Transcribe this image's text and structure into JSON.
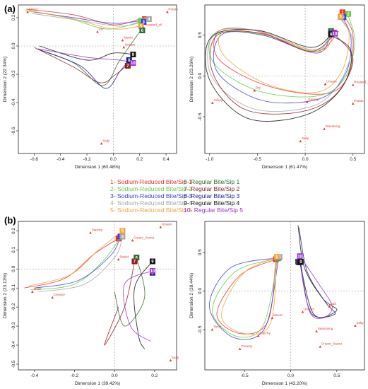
{
  "figure": {
    "colors": {
      "1": "#e8322c",
      "2": "#5fd146",
      "3": "#3b3fd0",
      "4": "#a7a7a7",
      "5": "#f4a23a",
      "6": "#2c6a2e",
      "7": "#8e1e22",
      "8": "#1c1c8a",
      "9": "#151515",
      "10": "#9a34d6",
      "point": "#e23b2e"
    },
    "legend": {
      "items": [
        {
          "key": "1",
          "label": "1- Sodium-Reduced Bite/Sip 1"
        },
        {
          "key": "2",
          "label": "2- Sodium-Reduced Bite/Sip 2"
        },
        {
          "key": "3",
          "label": "3- Sodium-Reduced Bite/Sip 3"
        },
        {
          "key": "4",
          "label": "4- Sodium-Reduced Bite/Sip 4"
        },
        {
          "key": "5",
          "label": "5- Sodium-Reduced Bite/Sip 5"
        },
        {
          "key": "6",
          "label": "6- Regular Bite/Sip 1"
        },
        {
          "key": "7",
          "label": "7- Regular Bite/Sip 2"
        },
        {
          "key": "8",
          "label": "8- Regular Bite/Sip 3"
        },
        {
          "key": "9",
          "label": "9- Regular Bite/Sip 4"
        },
        {
          "key": "10",
          "label": "10- Regular Bite/Sip 5"
        }
      ]
    },
    "panel_labels": [
      "(a)",
      "(b)"
    ]
  },
  "chart_data": [
    {
      "type": "scatter",
      "title": "",
      "panel": "(a)",
      "xlabel": "Dimension 1 (60.48%)",
      "ylabel": "Dimension 2 (22.34%)",
      "xlim": [
        -0.72,
        0.48
      ],
      "ylim": [
        -0.76,
        0.29
      ],
      "xticks": [
        -0.6,
        -0.4,
        -0.2,
        0.0,
        0.2,
        0.4
      ],
      "xtick_labels": [
        "-0.6",
        "-0.4",
        "-0.2",
        "0.0",
        "0.2",
        "0.4"
      ],
      "yticks": [
        -0.6,
        -0.4,
        -0.2,
        0.0,
        0.2
      ],
      "ytick_labels": [
        "-0.6",
        "-0.4",
        "-0.2",
        "0.0",
        "0.2"
      ],
      "attributes": [
        {
          "name": "Crispy",
          "x": -0.65,
          "y": 0.24
        },
        {
          "name": "Potato",
          "x": 0.41,
          "y": 0.24
        },
        {
          "name": "Dry",
          "x": -0.12,
          "y": 0.1
        },
        {
          "name": "Roasted_oil",
          "x": 0.23,
          "y": 0.13
        },
        {
          "name": "Sweet",
          "x": 0.07,
          "y": 0.04
        },
        {
          "name": "Umami",
          "x": 0.08,
          "y": -0.01
        },
        {
          "name": "Salty",
          "x": -0.09,
          "y": -0.69
        }
      ],
      "samples": [
        {
          "id": "1",
          "x": 0.24,
          "y": 0.19
        },
        {
          "id": "2",
          "x": 0.21,
          "y": 0.18
        },
        {
          "id": "3",
          "x": 0.23,
          "y": 0.17
        },
        {
          "id": "4",
          "x": 0.27,
          "y": 0.19
        },
        {
          "id": "5",
          "x": 0.21,
          "y": 0.14
        },
        {
          "id": "6",
          "x": 0.22,
          "y": 0.11
        },
        {
          "id": "7",
          "x": 0.11,
          "y": -0.14
        },
        {
          "id": "8",
          "x": 0.12,
          "y": -0.1
        },
        {
          "id": "9",
          "x": 0.15,
          "y": -0.06
        },
        {
          "id": "10",
          "x": 0.15,
          "y": -0.12
        }
      ]
    },
    {
      "type": "scatter",
      "title": "",
      "panel": "(a)",
      "xlabel": "Dimension 1 (61.47%)",
      "ylabel": "Dimension 2 (23.26%)",
      "xlim": [
        -1.05,
        0.62
      ],
      "ylim": [
        -0.95,
        0.87
      ],
      "xticks": [
        -1.0,
        -0.5,
        0.0,
        0.5
      ],
      "xtick_labels": [
        "-1.0",
        "-0.5",
        "0.0",
        "0.5"
      ],
      "yticks": [
        -0.5,
        0.0,
        0.5
      ],
      "ytick_labels": [
        "-0.5",
        "0.0",
        "0.5"
      ],
      "attributes": [
        {
          "name": "Crispy",
          "x": -0.97,
          "y": -0.33
        },
        {
          "name": "Dry",
          "x": -0.53,
          "y": -0.18
        },
        {
          "name": "Umami",
          "x": 0.21,
          "y": -0.1
        },
        {
          "name": "Roasted_oil",
          "x": 0.5,
          "y": -0.11
        },
        {
          "name": "Greasy",
          "x": 0.02,
          "y": -0.32
        },
        {
          "name": "Potato",
          "x": 0.5,
          "y": -0.34
        },
        {
          "name": "Dissolving",
          "x": 0.2,
          "y": -0.65
        },
        {
          "name": "Salty",
          "x": -0.05,
          "y": -0.8
        }
      ],
      "samples": [
        {
          "id": "1",
          "x": 0.39,
          "y": 0.78
        },
        {
          "id": "2",
          "x": 0.45,
          "y": 0.76
        },
        {
          "id": "3",
          "x": 0.4,
          "y": 0.72
        },
        {
          "id": "4",
          "x": 0.37,
          "y": 0.72
        },
        {
          "id": "5",
          "x": 0.37,
          "y": 0.73
        },
        {
          "id": "6",
          "x": 0.27,
          "y": 0.55
        },
        {
          "id": "7",
          "x": 0.3,
          "y": 0.53
        },
        {
          "id": "8",
          "x": 0.27,
          "y": 0.52
        },
        {
          "id": "9",
          "x": 0.27,
          "y": 0.51
        },
        {
          "id": "10",
          "x": 0.31,
          "y": 0.52
        }
      ]
    },
    {
      "type": "scatter",
      "title": "",
      "panel": "(b)",
      "xlabel": "Dimension 1 (39.42%)",
      "ylabel": "Dimension 2 (23.13%)",
      "xlim": [
        -0.48,
        0.31
      ],
      "ylim": [
        -0.53,
        0.25
      ],
      "xticks": [
        -0.4,
        -0.2,
        0.0,
        0.2
      ],
      "xtick_labels": [
        "-0.4",
        "-0.2",
        "0.0",
        "0.2"
      ],
      "yticks": [
        -0.5,
        -0.4,
        -0.3,
        -0.2,
        -0.1,
        0.0,
        0.1,
        0.2
      ],
      "ytick_labels": [
        "-0.5",
        "-0.4",
        "-0.3",
        "-0.2",
        "-0.1",
        "0.0",
        "0.1",
        "0.2"
      ],
      "attributes": [
        {
          "name": "Starchy",
          "x": -0.12,
          "y": 0.19
        },
        {
          "name": "Umami",
          "x": 0.23,
          "y": 0.22
        },
        {
          "name": "Cream_Sweet",
          "x": 0.09,
          "y": 0.15
        },
        {
          "name": "Sweet",
          "x": 0.02,
          "y": 0.05
        },
        {
          "name": "Thick",
          "x": -0.41,
          "y": -0.12
        },
        {
          "name": "Creamy",
          "x": -0.31,
          "y": -0.15
        },
        {
          "name": "Salty",
          "x": 0.28,
          "y": -0.48
        }
      ],
      "samples": [
        {
          "id": "1",
          "x": 0.02,
          "y": 0.16
        },
        {
          "id": "2",
          "x": 0.03,
          "y": 0.17
        },
        {
          "id": "3",
          "x": 0.03,
          "y": 0.17
        },
        {
          "id": "4",
          "x": 0.04,
          "y": 0.17
        },
        {
          "id": "5",
          "x": 0.04,
          "y": 0.2
        },
        {
          "id": "6",
          "x": 0.11,
          "y": 0.06
        },
        {
          "id": "7",
          "x": 0.1,
          "y": 0.04
        },
        {
          "id": "8",
          "x": 0.19,
          "y": -0.02
        },
        {
          "id": "9",
          "x": 0.19,
          "y": 0.04
        },
        {
          "id": "10",
          "x": 0.19,
          "y": -0.01
        }
      ]
    },
    {
      "type": "scatter",
      "title": "",
      "panel": "(b)",
      "xlabel": "Dimension 1 (43.20%)",
      "ylabel": "Dimension 2 (28.44%)",
      "xlim": [
        -0.93,
        0.8
      ],
      "ylim": [
        -1.02,
        0.9
      ],
      "xticks": [
        -0.5,
        0.0,
        0.5
      ],
      "xtick_labels": [
        "-0.5",
        "0.0",
        "0.5"
      ],
      "yticks": [
        -0.5,
        0.0,
        0.5
      ],
      "ytick_labels": [
        "-0.5",
        "0.0",
        "0.5"
      ],
      "attributes": [
        {
          "name": "Thick",
          "x": -0.85,
          "y": -0.5
        },
        {
          "name": "Sweet",
          "x": -0.2,
          "y": -0.35
        },
        {
          "name": "Umami",
          "x": 0.13,
          "y": -0.27
        },
        {
          "name": "Salt",
          "x": 0.42,
          "y": -0.2
        },
        {
          "name": "Seasoning",
          "x": 0.28,
          "y": -0.52
        },
        {
          "name": "Salty",
          "x": 0.7,
          "y": -0.45
        },
        {
          "name": "Starchy",
          "x": -0.35,
          "y": -0.58
        },
        {
          "name": "Creamy",
          "x": -0.55,
          "y": -0.75
        },
        {
          "name": "Cream_Sweet",
          "x": 0.32,
          "y": -0.72
        }
      ],
      "samples": [
        {
          "id": "1",
          "x": -0.16,
          "y": 0.41
        },
        {
          "id": "2",
          "x": -0.14,
          "y": 0.42
        },
        {
          "id": "3",
          "x": -0.13,
          "y": 0.43
        },
        {
          "id": "4",
          "x": -0.12,
          "y": 0.44
        },
        {
          "id": "5",
          "x": -0.15,
          "y": 0.44
        },
        {
          "id": "6",
          "x": 0.08,
          "y": 0.38
        },
        {
          "id": "7",
          "x": 0.09,
          "y": 0.37
        },
        {
          "id": "8",
          "x": 0.1,
          "y": 0.37
        },
        {
          "id": "9",
          "x": 0.11,
          "y": 0.38
        },
        {
          "id": "10",
          "x": 0.1,
          "y": 0.45
        }
      ]
    }
  ]
}
